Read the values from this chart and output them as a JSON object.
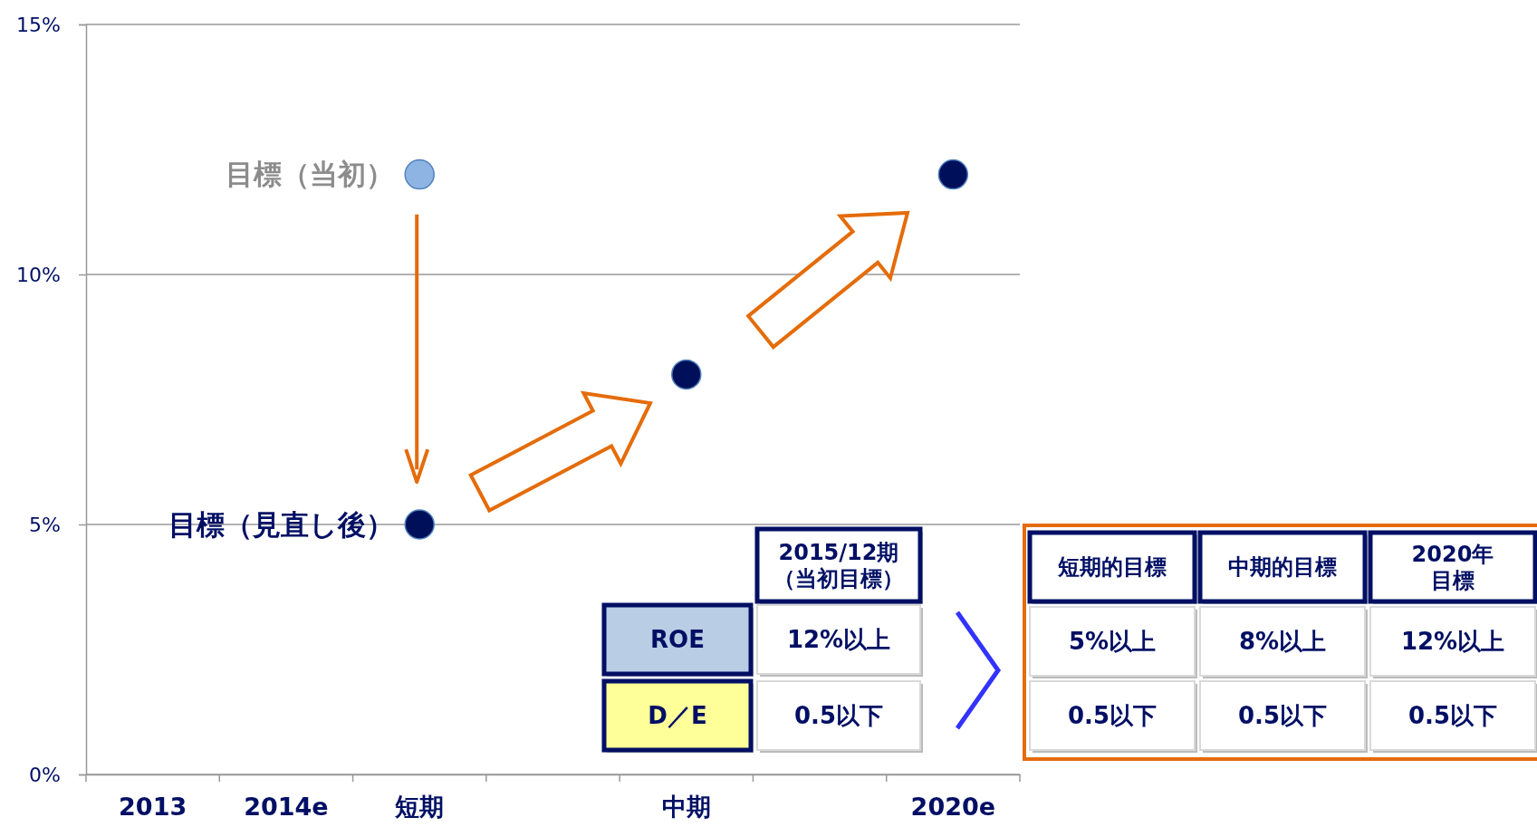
{
  "chart_data": {
    "type": "scatter",
    "categories": [
      "2013",
      "2014e",
      "短期",
      null,
      "中期",
      null,
      "2020e"
    ],
    "series": [
      {
        "name": "目標（当初）",
        "color": "#8eb4e3",
        "values": [
          null,
          null,
          12,
          null,
          null,
          null,
          null
        ]
      },
      {
        "name": "目標（見直し後）",
        "color": "#000f5a",
        "values": [
          null,
          null,
          5,
          null,
          8,
          null,
          12
        ]
      }
    ],
    "ylim": [
      0,
      15
    ],
    "yticks": [
      {
        "value": 0,
        "label": "0%"
      },
      {
        "value": 5,
        "label": "5%"
      },
      {
        "value": 10,
        "label": "10%"
      },
      {
        "value": 15,
        "label": "15%"
      }
    ],
    "grid": "y",
    "legend": false,
    "marker": "circle",
    "annotations": [
      "2015/12期（当初目標）",
      "ROE",
      "12%以上",
      "D／E",
      "0.5以下",
      "短期的目標",
      "中期的目標",
      "2020年目標",
      "5%以上",
      "8%以上",
      "12%以上",
      "0.5以下",
      "0.5以下",
      "0.5以下"
    ]
  }
}
